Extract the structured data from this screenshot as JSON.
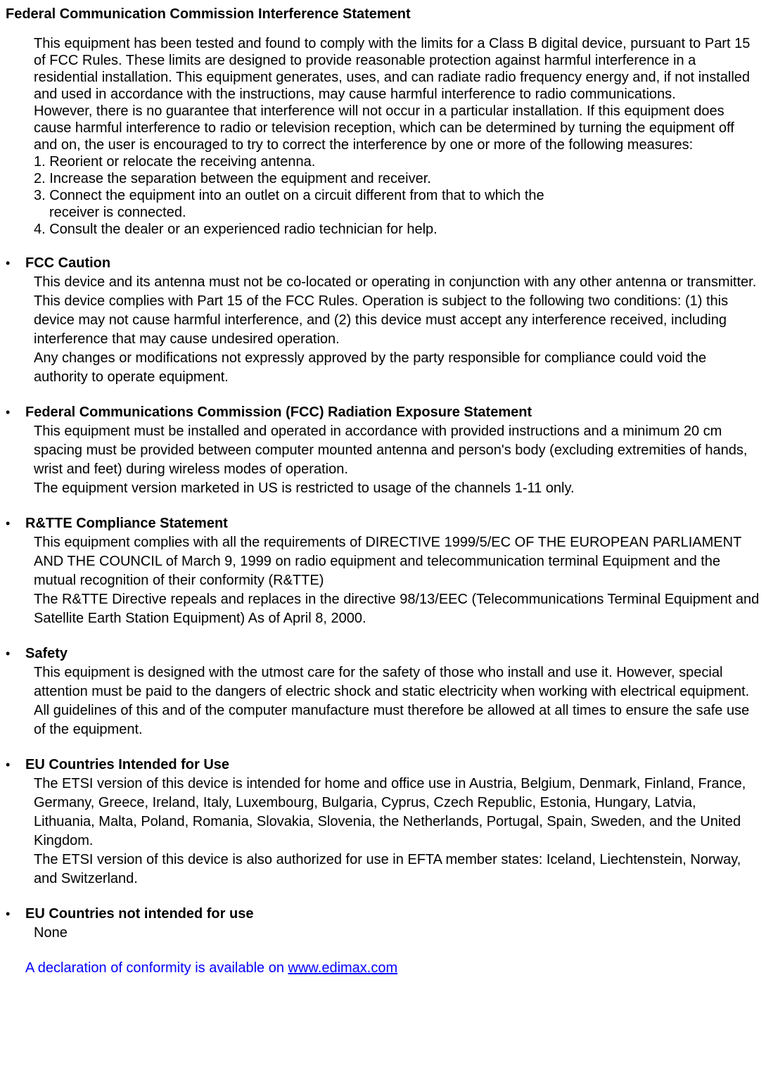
{
  "mainTitle": "Federal Communication Commission Interference Statement",
  "intro": {
    "para1": "This equipment has been tested and found to comply with the limits for a Class B digital device, pursuant to Part 15 of FCC Rules.    These limits are designed to provide reasonable protection against harmful interference in a residential installation. This equipment generates, uses, and can radiate radio frequency energy and, if not installed and used in accordance with the instructions, may cause harmful interference to radio communications.",
    "para2": "However, there is no guarantee that interference will not occur in a particular installation. If this equipment does cause harmful interference to radio or television reception, which can be determined by turning the equipment off and on, the user is encouraged to try to correct the interference by one or more of the following measures:",
    "item1": "1. Reorient or relocate the receiving antenna.",
    "item2": "2. Increase the separation between the equipment and receiver.",
    "item3": "3. Connect the equipment into an outlet on a circuit different from that to which the",
    "item3sub": "receiver is connected.",
    "item4": "4. Consult the dealer or an experienced radio technician for help."
  },
  "sections": {
    "fccCaution": {
      "title": "FCC Caution",
      "p1": "This device and its antenna must not be co-located or operating in conjunction with any other antenna or transmitter.",
      "p2": "This device complies with Part 15 of the FCC Rules. Operation is subject to the following two conditions: (1) this device may not cause harmful interference, and (2) this device must accept any interference received, including interference that may cause undesired operation.",
      "p3": "Any changes or modifications not expressly approved by the party responsible for compliance could void the authority to operate equipment."
    },
    "fccRadiation": {
      "title": "Federal Communications Commission (FCC) Radiation Exposure Statement",
      "p1": "This equipment must be installed and operated in accordance with provided instructions and a minimum 20 cm spacing must be provided between computer mounted antenna and person's body (excluding extremities of hands, wrist and feet) during wireless modes of operation.",
      "p2": "The equipment version marketed in US is restricted to usage of the channels 1-11 only."
    },
    "rtte": {
      "title": "R&TTE Compliance Statement",
      "p1": "This equipment complies with all the requirements of DIRECTIVE 1999/5/EC OF THE EUROPEAN PARLIAMENT AND THE COUNCIL of March 9, 1999 on radio equipment and telecommunication terminal Equipment and the mutual recognition of their conformity (R&TTE)",
      "p2": "The R&TTE Directive repeals and replaces in the directive 98/13/EEC (Telecommunications Terminal Equipment and Satellite Earth Station Equipment) As of April 8, 2000."
    },
    "safety": {
      "title": "Safety",
      "p1": "This equipment is designed with the utmost care for the safety of those who install and use it. However, special attention must be paid to the dangers of electric shock and static electricity when working with electrical equipment. All guidelines of this and of the computer manufacture must therefore be allowed at all times to ensure the safe use of the equipment."
    },
    "euIntended": {
      "title": "EU Countries Intended for Use",
      "p1": "The ETSI version of this device is intended for home and office use in Austria, Belgium, Denmark, Finland, France, Germany, Greece, Ireland, Italy, Luxembourg, Bulgaria, Cyprus, Czech Republic, Estonia, Hungary, Latvia, Lithuania, Malta, Poland, Romania, Slovakia, Slovenia, the Netherlands, Portugal, Spain, Sweden, and the United Kingdom.",
      "p2": "The ETSI version of this device is also authorized for use in EFTA member states: Iceland, Liechtenstein, Norway, and Switzerland."
    },
    "euNotIntended": {
      "title": "EU Countries not intended for use",
      "p1": "None"
    }
  },
  "declaration": {
    "prefix": "A declaration of conformity is available on ",
    "link": "www.edimax.com"
  }
}
